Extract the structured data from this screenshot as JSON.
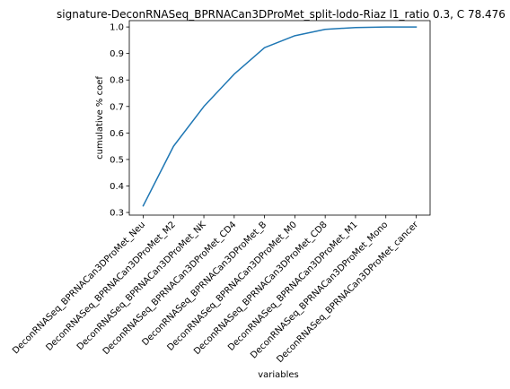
{
  "chart_data": {
    "type": "line",
    "title": "signature-DeconRNASeq_BPRNACan3DProMet_split-lodo-Riaz l1_ratio 0.3, C 78.476",
    "xlabel": "variables",
    "ylabel": "cumulative % coef",
    "categories": [
      "DeconRNASeq_BPRNACan3DProMet_Neu",
      "DeconRNASeq_BPRNACan3DProMet_M2",
      "DeconRNASeq_BPRNACan3DProMet_NK",
      "DeconRNASeq_BPRNACan3DProMet_CD4",
      "DeconRNASeq_BPRNACan3DProMet_B",
      "DeconRNASeq_BPRNACan3DProMet_M0",
      "DeconRNASeq_BPRNACan3DProMet_CD8",
      "DeconRNASeq_BPRNACan3DProMet_M1",
      "DeconRNASeq_BPRNACan3DProMet_Mono",
      "DeconRNASeq_BPRNACan3DProMet_cancer"
    ],
    "series": [
      {
        "name": "cumulative % coef",
        "color": "#1f77b4",
        "values": [
          0.325,
          0.55,
          0.7,
          0.822,
          0.922,
          0.967,
          0.991,
          0.998,
          1.0,
          1.0
        ]
      }
    ],
    "ylim": [
      0.29,
      1.024
    ],
    "yticks": [
      0.3,
      0.4,
      0.5,
      0.6,
      0.7,
      0.8,
      0.9,
      1.0
    ],
    "ytick_labels": [
      "0.3",
      "0.4",
      "0.5",
      "0.6",
      "0.7",
      "0.8",
      "0.9",
      "1.0"
    ],
    "grid": false,
    "legend": "none"
  }
}
